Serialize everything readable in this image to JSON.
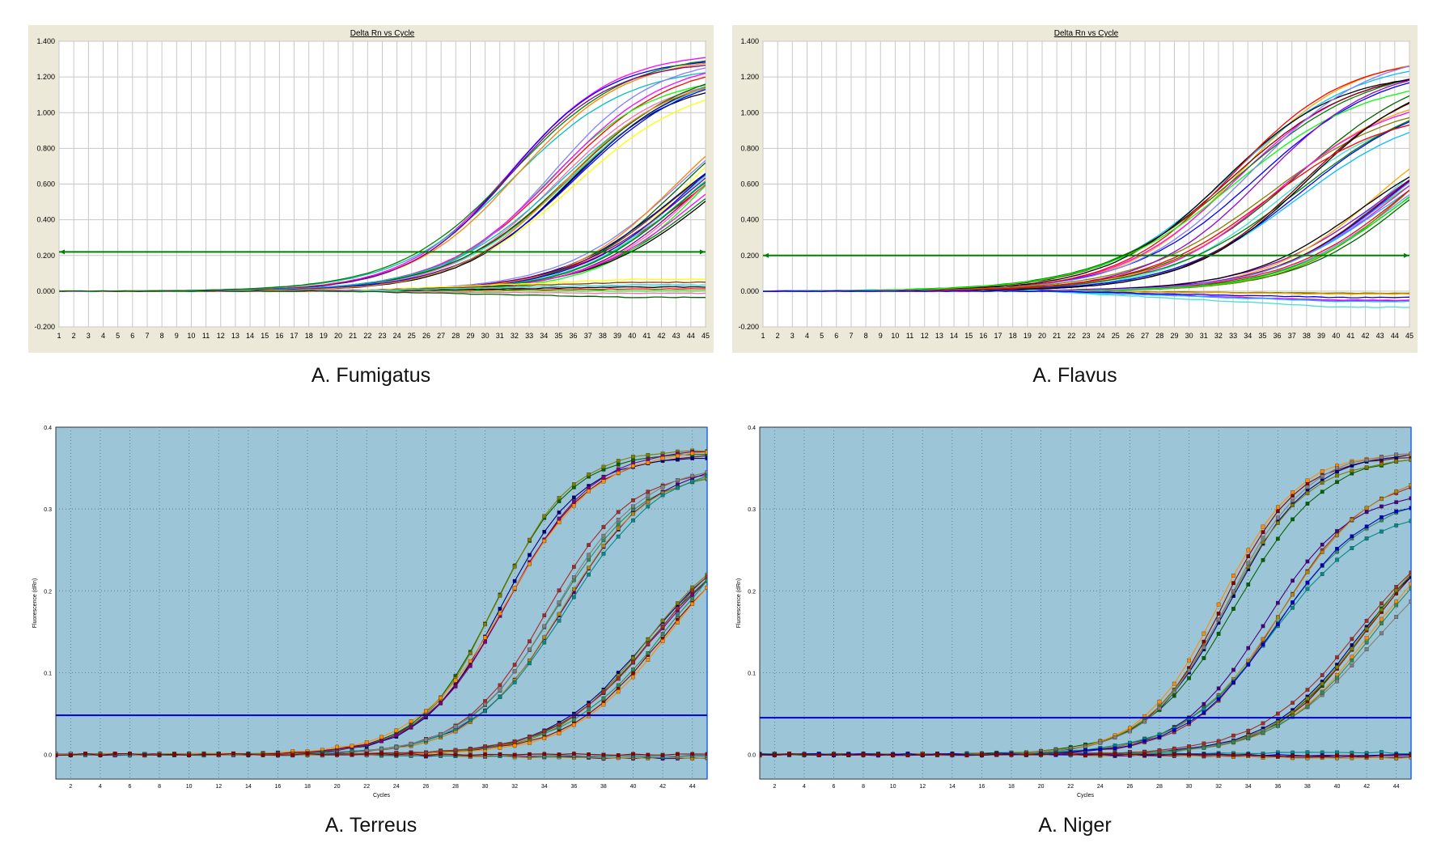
{
  "chart_data": [
    {
      "type": "line",
      "style": "abi",
      "title": "Delta Rn vs Cycle",
      "caption": "A. Fumigatus",
      "xlabel": "",
      "ylabel": "",
      "xlim": [
        1,
        45
      ],
      "ylim": [
        -0.2,
        1.4
      ],
      "xticks": [
        "1",
        "2",
        "3",
        "4",
        "5",
        "6",
        "7",
        "8",
        "9",
        "10",
        "11",
        "12",
        "13",
        "14",
        "15",
        "16",
        "17",
        "18",
        "19",
        "20",
        "21",
        "22",
        "23",
        "24",
        "25",
        "26",
        "27",
        "28",
        "29",
        "30",
        "31",
        "32",
        "33",
        "34",
        "35",
        "36",
        "37",
        "38",
        "39",
        "40",
        "41",
        "42",
        "43",
        "44",
        "45"
      ],
      "yticks": [
        {
          "value": 1.4,
          "label": "1.400"
        },
        {
          "value": 1.2,
          "label": "1.200"
        },
        {
          "value": 1.0,
          "label": "1.000"
        },
        {
          "value": 0.8,
          "label": "0.800"
        },
        {
          "value": 0.6,
          "label": "0.600"
        },
        {
          "value": 0.4,
          "label": "0.400"
        },
        {
          "value": 0.2,
          "label": "0.200"
        },
        {
          "value": 0.0,
          "label": "0.000"
        },
        {
          "value": -0.2,
          "label": "-0.200"
        }
      ],
      "threshold": 0.22,
      "threshold_color": "#008000",
      "groups": [
        {
          "name": "early",
          "count": 6,
          "ct_min": 25.2,
          "ct_max": 26.4,
          "plateau_min": 1.26,
          "plateau_max": 1.34,
          "slope": 0.28
        },
        {
          "name": "mid",
          "count": 14,
          "ct_min": 28.6,
          "ct_max": 30.2,
          "plateau_min": 1.18,
          "plateau_max": 1.32,
          "slope": 0.26
        },
        {
          "name": "late",
          "count": 18,
          "ct_min": 37.0,
          "ct_max": 40.0,
          "plateau_min": 0.95,
          "plateau_max": 1.25,
          "slope": 0.26
        },
        {
          "name": "flat",
          "count": 9,
          "flat_min": -0.04,
          "flat_max": 0.07
        }
      ],
      "colors": [
        "#ff00ff",
        "#00c0c0",
        "#0000ff",
        "#ff8000",
        "#008000",
        "#800080",
        "#ff0000",
        "#00ff00",
        "#000000",
        "#ffff00",
        "#804000",
        "#8080ff",
        "#40e0d0",
        "#ff69b4",
        "#006400",
        "#00008b"
      ]
    },
    {
      "type": "line",
      "style": "abi",
      "title": "Delta Rn vs Cycle",
      "caption": "A. Flavus",
      "xlabel": "",
      "ylabel": "",
      "xlim": [
        1,
        45
      ],
      "ylim": [
        -0.2,
        1.4
      ],
      "xticks": [
        "1",
        "2",
        "3",
        "4",
        "5",
        "6",
        "7",
        "8",
        "9",
        "10",
        "11",
        "12",
        "13",
        "14",
        "15",
        "16",
        "17",
        "18",
        "19",
        "20",
        "21",
        "22",
        "23",
        "24",
        "25",
        "26",
        "27",
        "28",
        "29",
        "30",
        "31",
        "32",
        "33",
        "34",
        "35",
        "36",
        "37",
        "38",
        "39",
        "40",
        "41",
        "42",
        "43",
        "44",
        "45"
      ],
      "yticks": [
        {
          "value": 1.4,
          "label": "1.400"
        },
        {
          "value": 1.2,
          "label": "1.200"
        },
        {
          "value": 1.0,
          "label": "1.000"
        },
        {
          "value": 0.8,
          "label": "0.800"
        },
        {
          "value": 0.6,
          "label": "0.600"
        },
        {
          "value": 0.4,
          "label": "0.400"
        },
        {
          "value": 0.2,
          "label": "0.200"
        },
        {
          "value": 0.0,
          "label": "0.000"
        },
        {
          "value": -0.2,
          "label": "-0.200"
        }
      ],
      "threshold": 0.2,
      "threshold_color": "#008000",
      "groups": [
        {
          "name": "early",
          "count": 10,
          "ct_min": 25.5,
          "ct_max": 27.5,
          "plateau_min": 1.2,
          "plateau_max": 1.36,
          "slope": 0.24
        },
        {
          "name": "mid",
          "count": 12,
          "ct_min": 28.5,
          "ct_max": 31.5,
          "plateau_min": 1.02,
          "plateau_max": 1.3,
          "slope": 0.24
        },
        {
          "name": "late",
          "count": 16,
          "ct_min": 36.5,
          "ct_max": 39.5,
          "plateau_min": 0.85,
          "plateau_max": 1.15,
          "slope": 0.25
        },
        {
          "name": "flat",
          "count": 8,
          "flat_min": -0.1,
          "flat_max": -0.01
        }
      ],
      "colors": [
        "#ffa500",
        "#ff00ff",
        "#00bfff",
        "#0000ff",
        "#008000",
        "#800000",
        "#000000",
        "#ff0000",
        "#00ff00",
        "#8080ff",
        "#006400",
        "#40e0d0",
        "#808000",
        "#9400d3"
      ]
    },
    {
      "type": "line",
      "style": "mx",
      "title": "",
      "caption": "A. Terreus",
      "xlabel": "Cycles",
      "ylabel": "Fluorescence (dRn)",
      "xlim": [
        1,
        45
      ],
      "ylim": [
        -0.03,
        0.4
      ],
      "xticks": [
        "2",
        "4",
        "6",
        "8",
        "10",
        "12",
        "14",
        "16",
        "18",
        "20",
        "22",
        "24",
        "26",
        "28",
        "30",
        "32",
        "34",
        "36",
        "38",
        "40",
        "42",
        "44"
      ],
      "yticks": [
        {
          "value": 0.4,
          "label": "0.4"
        },
        {
          "value": 0.3,
          "label": "0.3"
        },
        {
          "value": 0.2,
          "label": "0.2"
        },
        {
          "value": 0.1,
          "label": "0.1"
        },
        {
          "value": 0.0,
          "label": "0.0"
        }
      ],
      "threshold": 0.048,
      "threshold_color": "#0000cc",
      "groups": [
        {
          "name": "early",
          "count": 6,
          "ct_min": 25.6,
          "ct_max": 26.2,
          "plateau_min": 0.36,
          "plateau_max": 0.375,
          "slope": 0.36
        },
        {
          "name": "mid",
          "count": 6,
          "ct_min": 29.0,
          "ct_max": 29.8,
          "plateau_min": 0.345,
          "plateau_max": 0.365,
          "slope": 0.34
        },
        {
          "name": "late",
          "count": 8,
          "ct_min": 35.8,
          "ct_max": 37.4,
          "plateau_min": 0.27,
          "plateau_max": 0.32,
          "slope": 0.3
        },
        {
          "name": "flat",
          "count": 5,
          "flat_min": -0.005,
          "flat_max": 0.005
        }
      ],
      "colors": [
        "#8b0000",
        "#000080",
        "#006400",
        "#808000",
        "#800080",
        "#ff8c00",
        "#2e8b57",
        "#a52a2a",
        "#4b0082",
        "#b8860b",
        "#008b8b",
        "#808080"
      ]
    },
    {
      "type": "line",
      "style": "mx",
      "title": "",
      "caption": "A. Niger",
      "xlabel": "Cycles",
      "ylabel": "Fluorescence (dRn)",
      "xlim": [
        1,
        45
      ],
      "ylim": [
        -0.03,
        0.4
      ],
      "xticks": [
        "2",
        "4",
        "6",
        "8",
        "10",
        "12",
        "14",
        "16",
        "18",
        "20",
        "22",
        "24",
        "26",
        "28",
        "30",
        "32",
        "34",
        "36",
        "38",
        "40",
        "42",
        "44"
      ],
      "yticks": [
        {
          "value": 0.4,
          "label": "0.4"
        },
        {
          "value": 0.3,
          "label": "0.3"
        },
        {
          "value": 0.2,
          "label": "0.2"
        },
        {
          "value": 0.1,
          "label": "0.1"
        },
        {
          "value": 0.0,
          "label": "0.0"
        }
      ],
      "threshold": 0.045,
      "threshold_color": "#0000cc",
      "groups": [
        {
          "name": "early",
          "count": 6,
          "ct_min": 26.8,
          "ct_max": 27.4,
          "plateau_min": 0.36,
          "plateau_max": 0.375,
          "slope": 0.37
        },
        {
          "name": "mid",
          "count": 6,
          "ct_min": 29.8,
          "ct_max": 30.8,
          "plateau_min": 0.3,
          "plateau_max": 0.36,
          "slope": 0.34
        },
        {
          "name": "late",
          "count": 8,
          "ct_min": 35.6,
          "ct_max": 37.2,
          "plateau_min": 0.26,
          "plateau_max": 0.3,
          "slope": 0.3
        },
        {
          "name": "flat",
          "count": 5,
          "flat_min": -0.005,
          "flat_max": 0.005
        }
      ],
      "colors": [
        "#8b0000",
        "#000080",
        "#006400",
        "#808000",
        "#ff8c00",
        "#808080",
        "#2e8b57",
        "#a52a2a",
        "#4b0082",
        "#b8860b",
        "#008b8b",
        "#0000cd"
      ]
    }
  ]
}
